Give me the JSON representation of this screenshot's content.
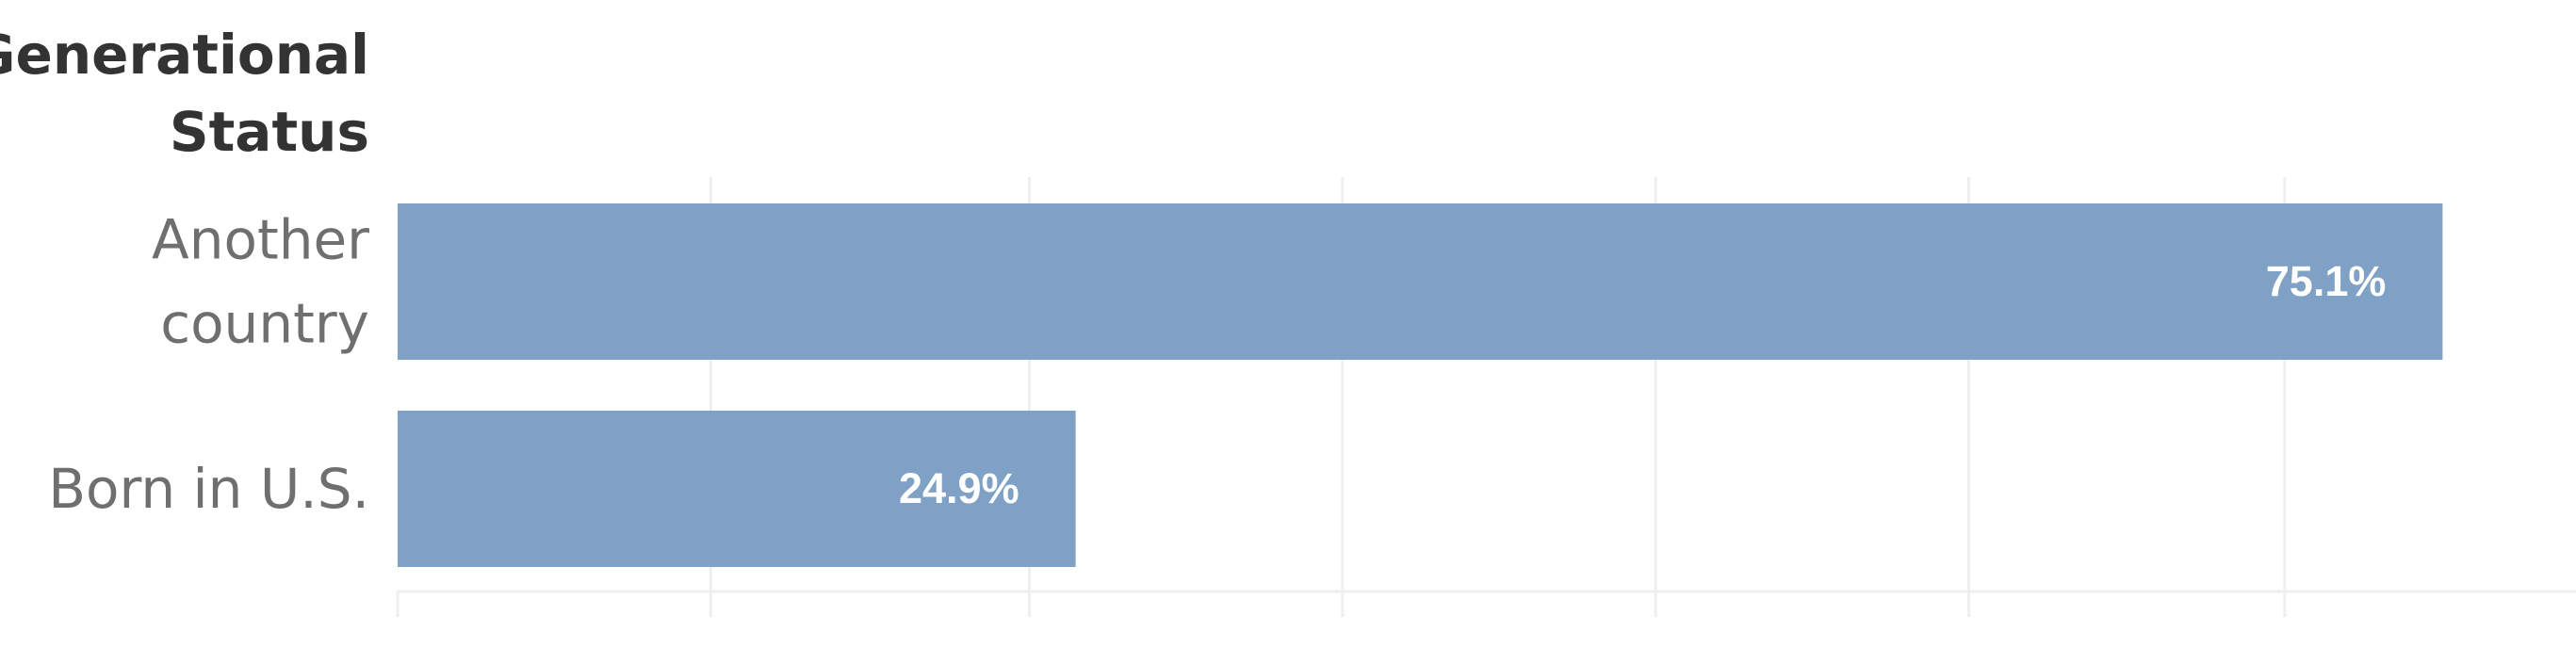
{
  "chart_data": {
    "type": "bar",
    "orientation": "horizontal",
    "header": [
      "Generational",
      "Status"
    ],
    "categories": [
      {
        "label": [
          "Another",
          "country"
        ],
        "value": 75.1,
        "value_label": "75.1%"
      },
      {
        "label": [
          "Born in U.S."
        ],
        "value": 24.9,
        "value_label": "24.9%"
      }
    ],
    "xlim": [
      0,
      80
    ],
    "x_ticks": [
      0,
      11.5,
      23.2,
      34.7,
      46.2,
      57.7,
      69.3
    ],
    "grid": true,
    "bar_color": "#7fa1c5",
    "grid_color": "#efefef",
    "axis_label_color": "#6f6f6f",
    "header_color": "#333333",
    "data_label_color": "#ffffff"
  }
}
